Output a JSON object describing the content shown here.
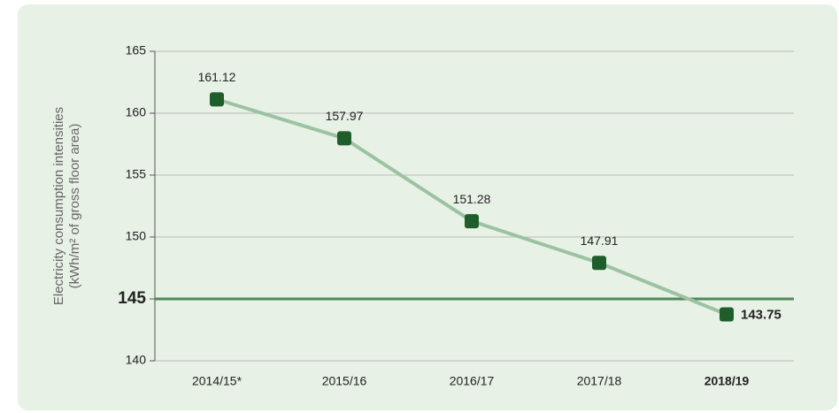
{
  "chart_data": {
    "type": "line",
    "ylabel": [
      "Electricity consumption intensities",
      "(kWh/m² of gross floor area)"
    ],
    "categories": [
      "2014/15*",
      "2015/16",
      "2016/17",
      "2017/18",
      "2018/19"
    ],
    "series": [
      {
        "color": "#9cc3a1",
        "marker_color": "#1f5e2b",
        "values": [
          161.12,
          157.97,
          151.28,
          147.91,
          143.75
        ]
      }
    ],
    "ylim": [
      140,
      165
    ],
    "yticks": [
      140,
      145,
      150,
      155,
      160,
      165
    ],
    "grid": true,
    "reference_line": {
      "value": 145,
      "color": "#4d8a57"
    },
    "highlight_index": 4
  }
}
